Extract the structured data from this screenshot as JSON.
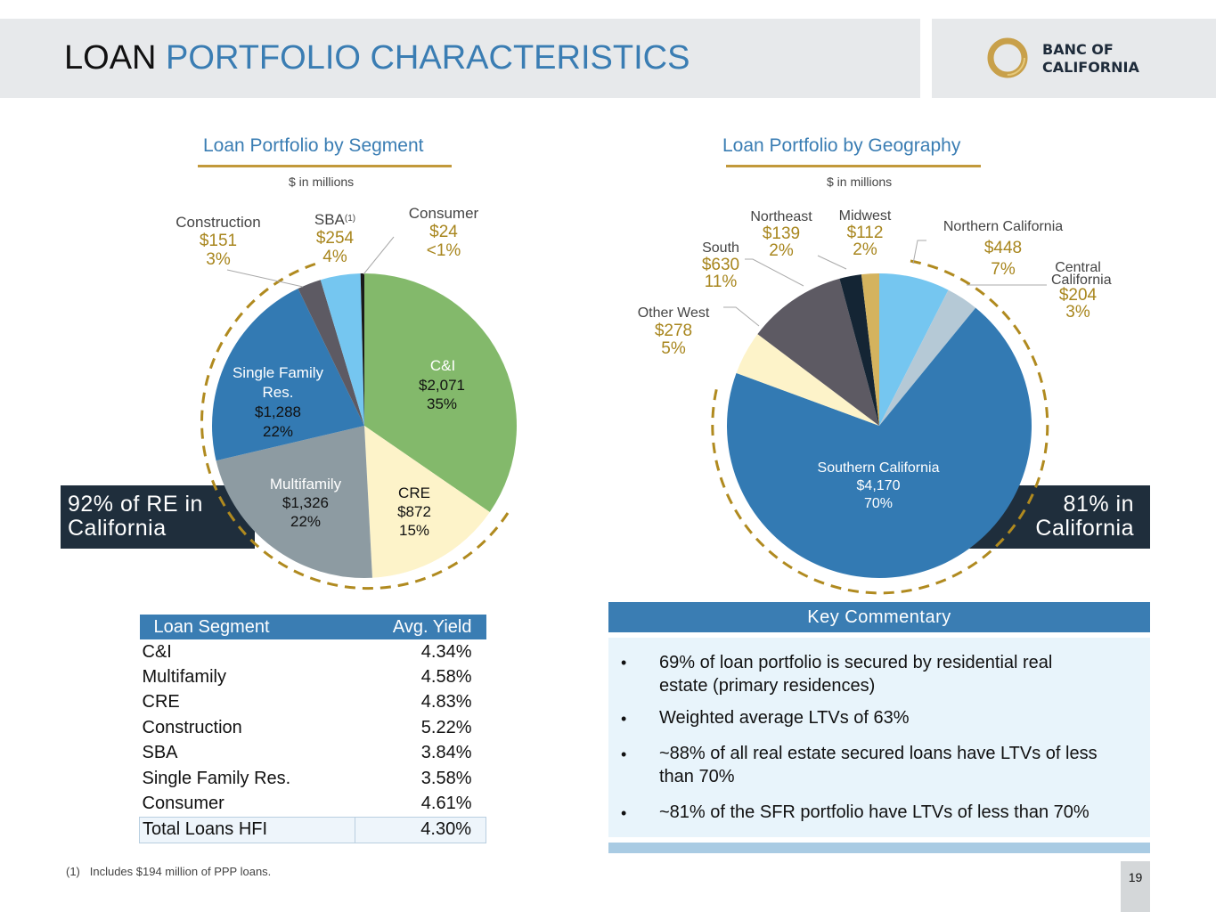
{
  "header": {
    "title_word1": "LOAN",
    "title_word2": "PORTFOLIO CHARACTERISTICS",
    "logo_line1": "BANC OF",
    "logo_line2": "CALIFORNIA"
  },
  "colors": {
    "accent_blue": "#3a7db3",
    "gold": "#c2993b",
    "dark_navy": "#1f2e3c",
    "label_gold": "#a8861e"
  },
  "chart_data": [
    {
      "type": "pie",
      "title": "Loan Portfolio by Segment",
      "units": "$ in millions",
      "callout": "92% of RE in California",
      "slices": [
        {
          "name": "C&I",
          "value_label": "$2,071",
          "pct_label": "35%",
          "value": 2071,
          "color": "#83b96b"
        },
        {
          "name": "CRE",
          "value_label": "$872",
          "pct_label": "15%",
          "value": 872,
          "color": "#fdf3c9"
        },
        {
          "name": "Multifamily",
          "value_label": "$1,326",
          "pct_label": "22%",
          "value": 1326,
          "color": "#8d9ba2"
        },
        {
          "name": "Single Family Res.",
          "value_label": "$1,288",
          "pct_label": "22%",
          "value": 1288,
          "color": "#337ab3"
        },
        {
          "name": "Construction",
          "value_label": "$151",
          "pct_label": "3%",
          "value": 151,
          "color": "#5d5a63"
        },
        {
          "name": "SBA",
          "footnote_ref": "(1)",
          "value_label": "$254",
          "pct_label": "4%",
          "value": 254,
          "color": "#75c6f0"
        },
        {
          "name": "Consumer",
          "value_label": "$24",
          "pct_label": "<1%",
          "value": 24,
          "color": "#1a1a1a"
        }
      ]
    },
    {
      "type": "pie",
      "title": "Loan Portfolio by Geography",
      "units": "$ in millions",
      "callout": "81% in California",
      "slices": [
        {
          "name": "Northern California",
          "value_label": "$448",
          "pct_label": "7%",
          "value": 448,
          "color": "#75c6f0"
        },
        {
          "name": "Central California",
          "value_label": "$204",
          "pct_label": "3%",
          "value": 204,
          "color": "#b5c9d6"
        },
        {
          "name": "Southern California",
          "value_label": "$4,170",
          "pct_label": "70%",
          "value": 4170,
          "color": "#337ab3"
        },
        {
          "name": "Other West",
          "value_label": "$278",
          "pct_label": "5%",
          "value": 278,
          "color": "#fdf3c9"
        },
        {
          "name": "South",
          "value_label": "$630",
          "pct_label": "11%",
          "value": 630,
          "color": "#5d5a63"
        },
        {
          "name": "Northeast",
          "value_label": "$139",
          "pct_label": "2%",
          "value": 139,
          "color": "#142534"
        },
        {
          "name": "Midwest",
          "value_label": "$112",
          "pct_label": "2%",
          "value": 112,
          "color": "#d4b35e"
        }
      ]
    }
  ],
  "yield_table": {
    "headers": [
      "Loan Segment",
      "Avg. Yield"
    ],
    "rows": [
      [
        "C&I",
        "4.34%"
      ],
      [
        "Multifamily",
        "4.58%"
      ],
      [
        "CRE",
        "4.83%"
      ],
      [
        "Construction",
        "5.22%"
      ],
      [
        "SBA",
        "3.84%"
      ],
      [
        "Single Family Res.",
        "3.58%"
      ],
      [
        "Consumer",
        "4.61%"
      ]
    ],
    "total": [
      "Total Loans HFI",
      "4.30%"
    ]
  },
  "commentary": {
    "title": "Key Commentary",
    "bullets": [
      {
        "line1": "69% of loan portfolio is secured by residential real",
        "line2": "estate (primary residences)"
      },
      {
        "line1": "Weighted average LTVs of 63%",
        "line2": ""
      },
      {
        "line1": "~88% of all real estate secured loans have LTVs of less",
        "line2": "than 70%"
      },
      {
        "line1": "~81% of the SFR portfolio have LTVs of less than 70%",
        "line2": ""
      }
    ]
  },
  "footnote": {
    "marker": "(1)",
    "text": "Includes $194 million of PPP loans."
  },
  "page_number": "19"
}
